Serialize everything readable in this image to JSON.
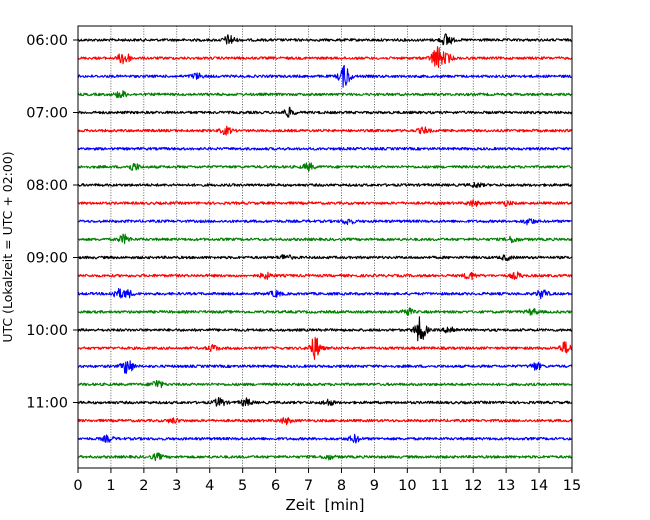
{
  "chart_data": {
    "type": "line",
    "title": "",
    "xlabel": "Zeit  [min]",
    "ylabel": "UTC (Lokalzeit = UTC + 02:00)",
    "xlim": [
      0,
      15
    ],
    "x_ticks": [
      "0",
      "1",
      "2",
      "3",
      "4",
      "5",
      "6",
      "7",
      "8",
      "9",
      "10",
      "11",
      "12",
      "13",
      "14",
      "15"
    ],
    "y_tick_labels": [
      "06:00",
      "07:00",
      "08:00",
      "09:00",
      "10:00",
      "11:00"
    ],
    "grid": "vertical-dotted",
    "trace_colors": [
      "#000000",
      "#ff0000",
      "#0000ff",
      "#008000"
    ],
    "traces": [
      {
        "start": "06:00",
        "color": "#000000",
        "events": [
          [
            4.6,
            0.7
          ],
          [
            11.2,
            0.9
          ]
        ]
      },
      {
        "start": "06:15",
        "color": "#ff0000",
        "events": [
          [
            1.4,
            1.0
          ],
          [
            10.9,
            1.6
          ],
          [
            11.2,
            0.6
          ]
        ]
      },
      {
        "start": "06:30",
        "color": "#0000ff",
        "events": [
          [
            8.1,
            1.6
          ],
          [
            3.6,
            0.4
          ]
        ]
      },
      {
        "start": "06:45",
        "color": "#008000",
        "events": [
          [
            1.3,
            0.5
          ]
        ]
      },
      {
        "start": "07:00",
        "color": "#000000",
        "events": [
          [
            6.4,
            0.6
          ]
        ]
      },
      {
        "start": "07:15",
        "color": "#ff0000",
        "events": [
          [
            4.5,
            0.5
          ],
          [
            10.5,
            0.4
          ]
        ]
      },
      {
        "start": "07:30",
        "color": "#0000ff",
        "events": []
      },
      {
        "start": "07:45",
        "color": "#008000",
        "events": [
          [
            1.7,
            0.5
          ],
          [
            7.0,
            0.5
          ]
        ]
      },
      {
        "start": "08:00",
        "color": "#000000",
        "events": [
          [
            12.1,
            0.3
          ]
        ]
      },
      {
        "start": "08:15",
        "color": "#ff0000",
        "events": [
          [
            12.0,
            0.4
          ],
          [
            13.0,
            0.3
          ]
        ]
      },
      {
        "start": "08:30",
        "color": "#0000ff",
        "events": [
          [
            8.2,
            0.4
          ],
          [
            13.7,
            0.4
          ]
        ]
      },
      {
        "start": "08:45",
        "color": "#008000",
        "events": [
          [
            1.4,
            0.6
          ],
          [
            13.2,
            0.4
          ]
        ]
      },
      {
        "start": "09:00",
        "color": "#000000",
        "events": [
          [
            6.3,
            0.4
          ],
          [
            13.0,
            0.3
          ]
        ]
      },
      {
        "start": "09:15",
        "color": "#ff0000",
        "events": [
          [
            5.7,
            0.4
          ],
          [
            11.9,
            0.5
          ],
          [
            13.3,
            0.4
          ]
        ]
      },
      {
        "start": "09:30",
        "color": "#0000ff",
        "events": [
          [
            1.2,
            0.6
          ],
          [
            1.5,
            0.5
          ],
          [
            6.0,
            0.4
          ],
          [
            14.1,
            0.6
          ]
        ]
      },
      {
        "start": "09:45",
        "color": "#008000",
        "events": [
          [
            10.0,
            0.5
          ],
          [
            13.8,
            0.4
          ]
        ]
      },
      {
        "start": "10:00",
        "color": "#000000",
        "events": [
          [
            10.4,
            1.8
          ],
          [
            11.3,
            0.5
          ]
        ]
      },
      {
        "start": "10:15",
        "color": "#ff0000",
        "events": [
          [
            7.2,
            1.6
          ],
          [
            14.8,
            0.8
          ],
          [
            4.1,
            0.4
          ]
        ]
      },
      {
        "start": "10:30",
        "color": "#0000ff",
        "events": [
          [
            1.5,
            1.1
          ],
          [
            13.9,
            0.5
          ]
        ]
      },
      {
        "start": "10:45",
        "color": "#008000",
        "events": [
          [
            2.4,
            0.6
          ]
        ]
      },
      {
        "start": "11:00",
        "color": "#000000",
        "events": [
          [
            4.3,
            0.6
          ],
          [
            5.1,
            0.5
          ],
          [
            7.6,
            0.4
          ]
        ]
      },
      {
        "start": "11:15",
        "color": "#ff0000",
        "events": [
          [
            6.3,
            0.4
          ],
          [
            2.9,
            0.3
          ]
        ]
      },
      {
        "start": "11:30",
        "color": "#0000ff",
        "events": [
          [
            0.9,
            0.4
          ],
          [
            8.4,
            0.5
          ]
        ]
      },
      {
        "start": "11:45",
        "color": "#008000",
        "events": [
          [
            2.4,
            0.4
          ],
          [
            7.6,
            0.3
          ]
        ]
      }
    ]
  }
}
